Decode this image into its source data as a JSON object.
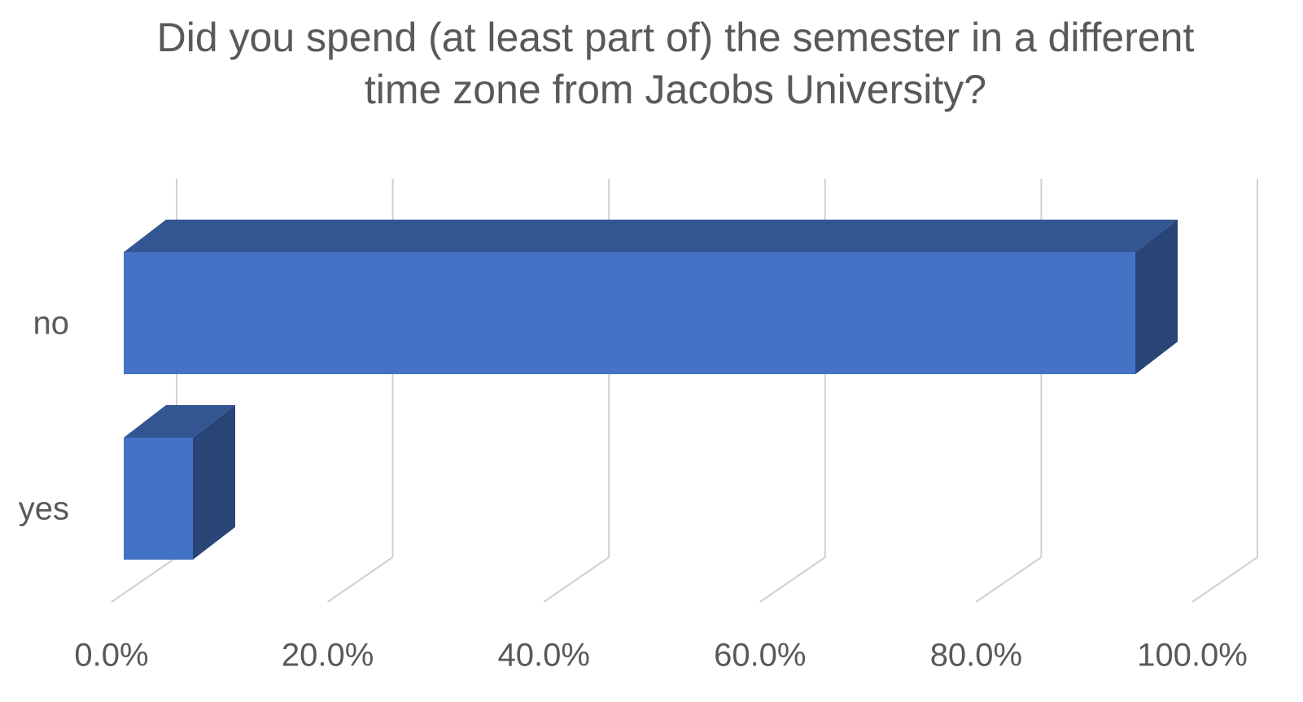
{
  "chart_data": {
    "type": "bar3d-horizontal",
    "title": "Did you spend (at least part of) the semester in a different time zone from Jacobs University?",
    "categories": [
      "no",
      "yes"
    ],
    "values": [
      93.6,
      6.4
    ],
    "color": "#4472c4",
    "xlim": [
      0,
      100
    ],
    "xticks": [
      {
        "value": 0,
        "label": "0.0%"
      },
      {
        "value": 20,
        "label": "20.0%"
      },
      {
        "value": 40,
        "label": "40.0%"
      },
      {
        "value": 60,
        "label": "60.0%"
      },
      {
        "value": 80,
        "label": "80.0%"
      },
      {
        "value": 100,
        "label": "100.0%"
      }
    ],
    "grid": true
  }
}
